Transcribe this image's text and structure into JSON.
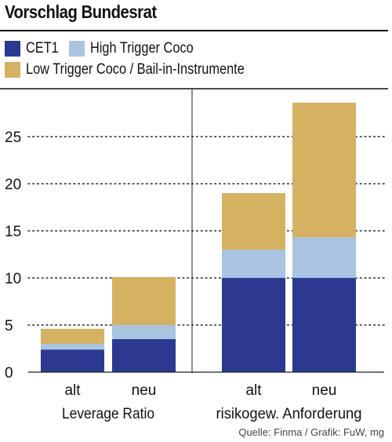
{
  "title": "Vorschlag Bundesrat",
  "source": "Quelle: Finma / Grafik: FuW, mg",
  "chart_data": {
    "type": "bar",
    "stacked": true,
    "title": "Vorschlag Bundesrat",
    "groups": [
      {
        "label": "Leverage Ratio",
        "categories": [
          "alt",
          "neu"
        ]
      },
      {
        "label": "risikogew. Anforderung",
        "categories": [
          "alt",
          "neu"
        ]
      }
    ],
    "categories": [
      "alt",
      "neu",
      "alt",
      "neu"
    ],
    "series": [
      {
        "name": "CET1",
        "color": "#2b3990",
        "values": [
          2.4,
          3.5,
          10.0,
          10.0
        ]
      },
      {
        "name": "High Trigger Coco",
        "color": "#a8c4e0",
        "values": [
          0.6,
          1.5,
          3.0,
          4.3
        ]
      },
      {
        "name": "Low Trigger Coco / Bail-in-Instrumente",
        "color": "#d4b262",
        "values": [
          1.6,
          5.1,
          6.0,
          14.3
        ]
      }
    ],
    "y_ticks": [
      0,
      5,
      10,
      15,
      20,
      25
    ],
    "ylim": [
      0,
      30
    ],
    "grid": "dotted horizontal",
    "legend_position": "top"
  }
}
